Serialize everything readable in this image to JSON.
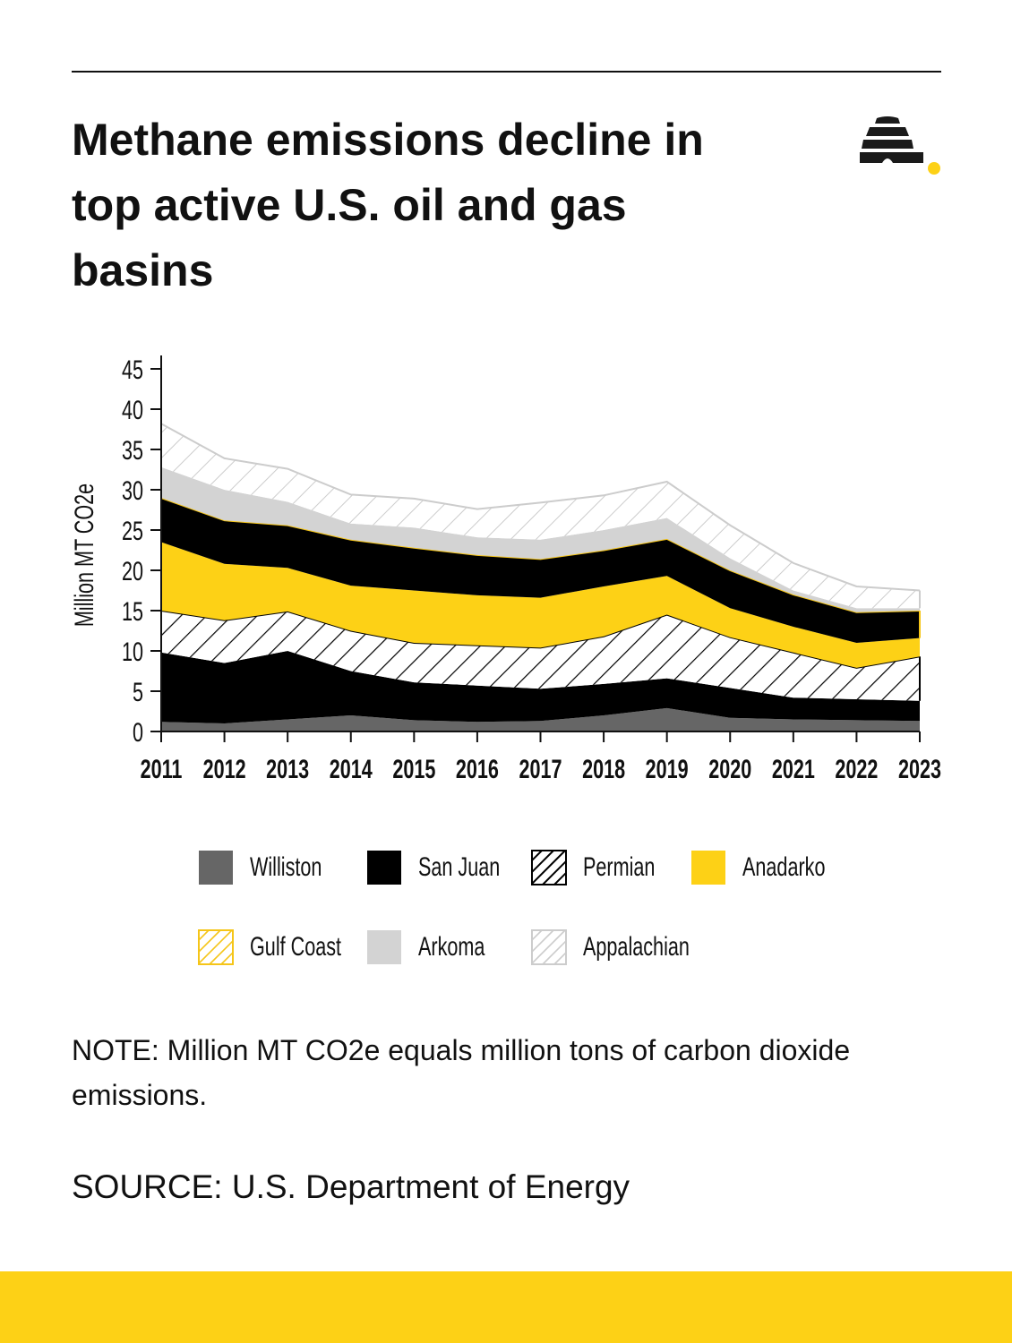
{
  "title": "Methane emissions decline in top active U.S. oil and gas basins",
  "note": "NOTE: Million MT CO2e equals million tons of carbon dioxide emissions.",
  "source": "SOURCE: U.S. Department of Energy",
  "colors": {
    "accent_yellow": "#FDD116",
    "williston": "#666666",
    "san_juan": "#000000",
    "arkoma": "#D3D3D3",
    "appalachian_hatch": "#CCCCCC"
  },
  "chart_data": {
    "type": "area",
    "stacked": true,
    "ylabel": "Million MT CO2e",
    "xlabel": "",
    "ylim": [
      0,
      45
    ],
    "yticks": [
      0,
      5,
      10,
      15,
      20,
      25,
      30,
      35,
      40,
      45
    ],
    "categories": [
      "2011",
      "2012",
      "2013",
      "2014",
      "2015",
      "2016",
      "2017",
      "2018",
      "2019",
      "2020",
      "2021",
      "2022",
      "2023"
    ],
    "legend_position": "bottom",
    "grid": false,
    "series": [
      {
        "name": "Williston",
        "fill": "solid",
        "color": "#666666",
        "values": [
          1.2,
          1.0,
          1.5,
          2.0,
          1.4,
          1.2,
          1.3,
          2.0,
          2.9,
          1.7,
          1.5,
          1.4,
          1.3
        ]
      },
      {
        "name": "San Juan",
        "fill": "solid",
        "color": "#000000",
        "values": [
          8.6,
          7.5,
          8.5,
          5.5,
          4.7,
          4.5,
          4.0,
          3.9,
          3.7,
          3.7,
          2.7,
          2.6,
          2.5
        ]
      },
      {
        "name": "Permian",
        "fill": "hatch",
        "color": "#000000",
        "values": [
          5.2,
          5.3,
          4.9,
          5.0,
          4.9,
          5.0,
          5.1,
          5.9,
          7.9,
          6.3,
          5.6,
          3.9,
          5.5
        ]
      },
      {
        "name": "Anadarko",
        "fill": "solid",
        "color": "#FDD116",
        "values": [
          8.5,
          7.0,
          5.4,
          5.6,
          6.5,
          6.2,
          6.2,
          6.2,
          4.8,
          3.6,
          3.2,
          3.1,
          2.3
        ]
      },
      {
        "name": "Gulf Coast",
        "fill": "hatch",
        "color": "#F5C518",
        "values": [
          5.5,
          5.4,
          5.3,
          5.7,
          5.3,
          5.0,
          4.8,
          4.5,
          4.6,
          4.7,
          4.0,
          3.8,
          3.4
        ]
      },
      {
        "name": "Arkoma",
        "fill": "solid",
        "color": "#D3D3D3",
        "values": [
          3.8,
          3.8,
          2.9,
          2.0,
          2.5,
          2.2,
          2.4,
          2.5,
          2.6,
          1.5,
          0.5,
          0.5,
          0.3
        ]
      },
      {
        "name": "Appalachian",
        "fill": "hatch",
        "color": "#CCCCCC",
        "values": [
          5.4,
          3.9,
          4.1,
          3.6,
          3.6,
          3.5,
          4.6,
          4.3,
          4.5,
          4.1,
          3.4,
          2.7,
          2.2
        ]
      }
    ]
  }
}
